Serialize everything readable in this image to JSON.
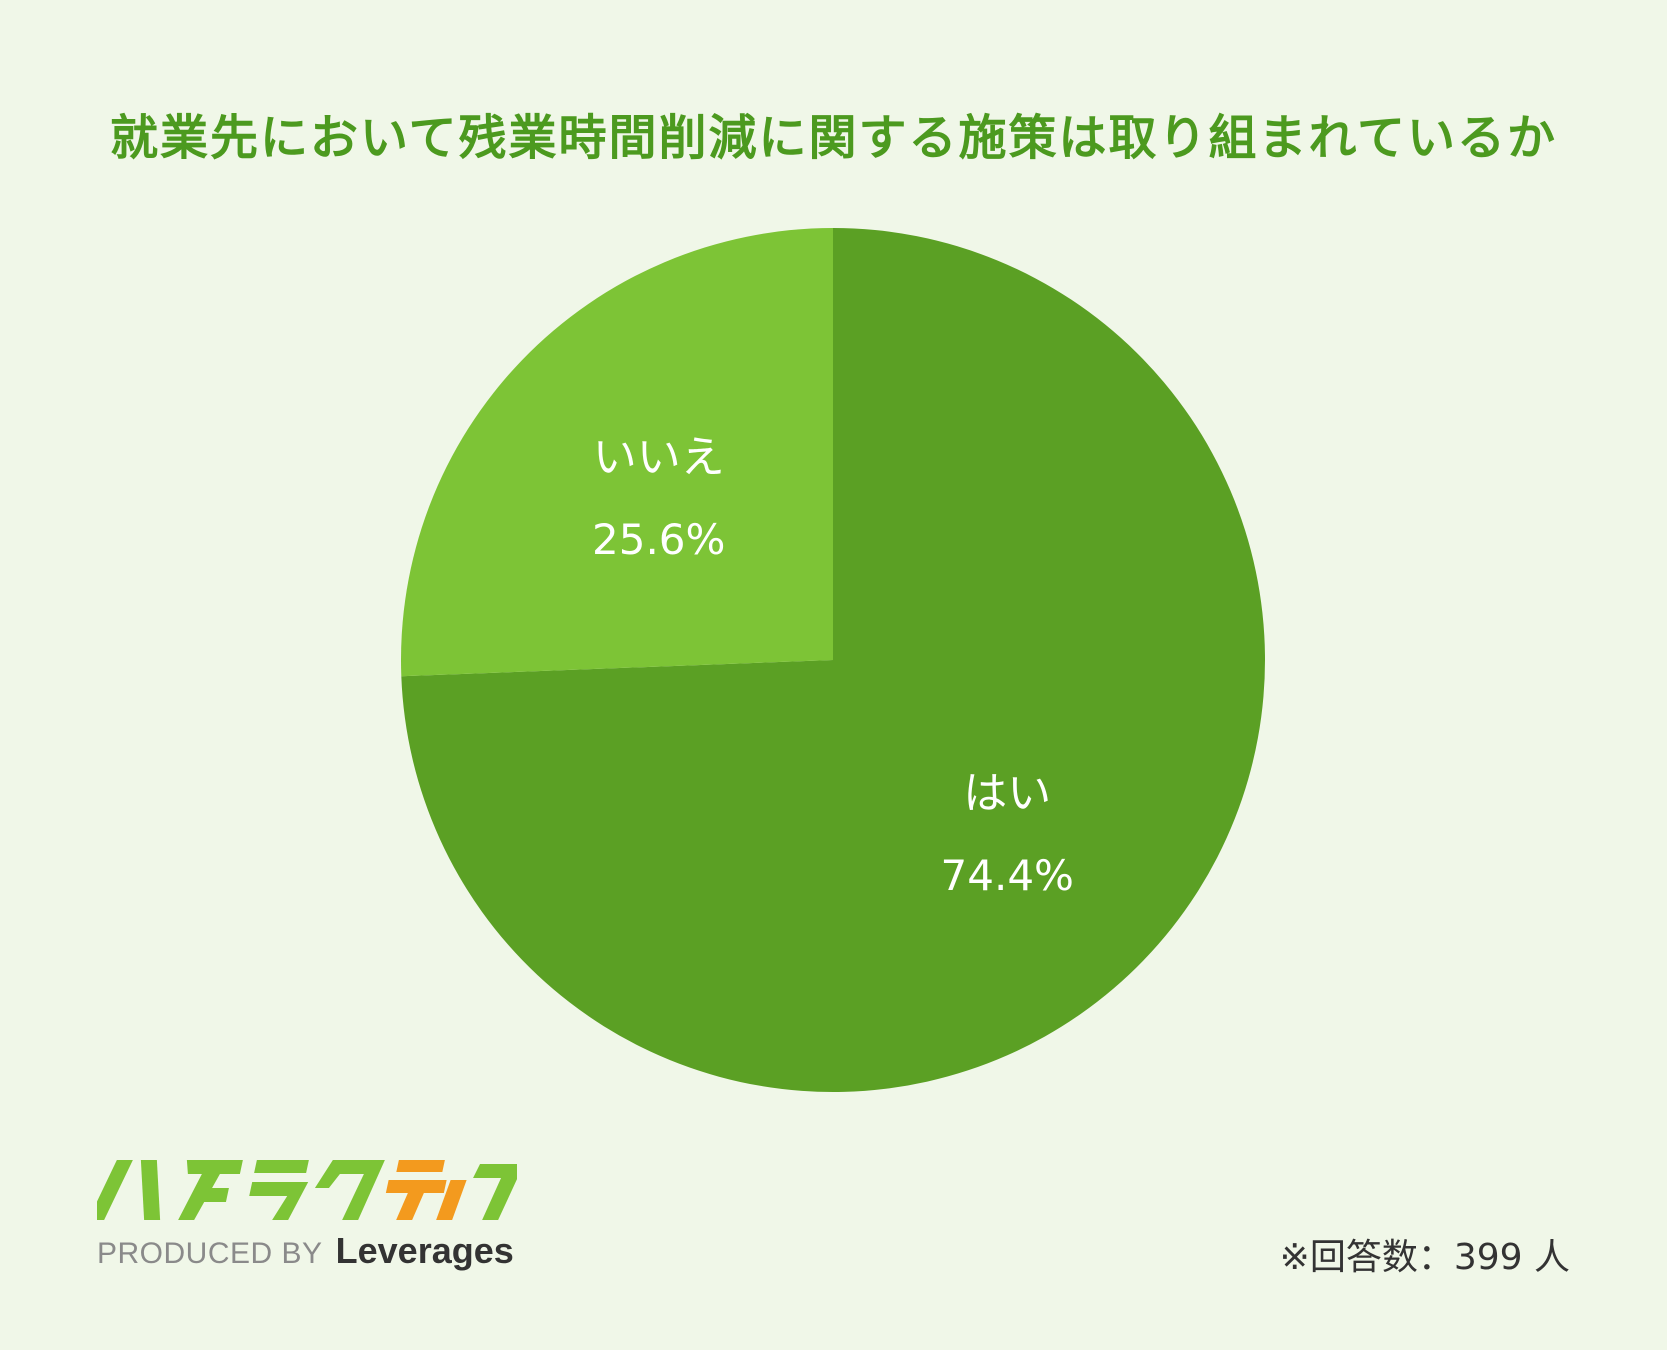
{
  "colors": {
    "background": "#f0f7e8",
    "title": "#4c9a1f",
    "yes_slice": "#5ba024",
    "no_slice": "#7dc436",
    "logo_green": "#7dc436",
    "logo_orange": "#f39a1e"
  },
  "chart_data": {
    "type": "pie",
    "title": "就業先において残業時間削減に関する施策は取り組まれているか",
    "slices": [
      {
        "label": "はい",
        "value": 74.4,
        "value_label": "74.4%",
        "color": "#5ba024"
      },
      {
        "label": "いいえ",
        "value": 25.6,
        "value_label": "25.6%",
        "color": "#7dc436"
      }
    ],
    "start": "12 o'clock",
    "direction": "clockwise"
  },
  "logo": {
    "name": "ハタラクティブ",
    "produced_by": "PRODUCED BY",
    "brand": "Leverages"
  },
  "note": "※回答数：399 人"
}
